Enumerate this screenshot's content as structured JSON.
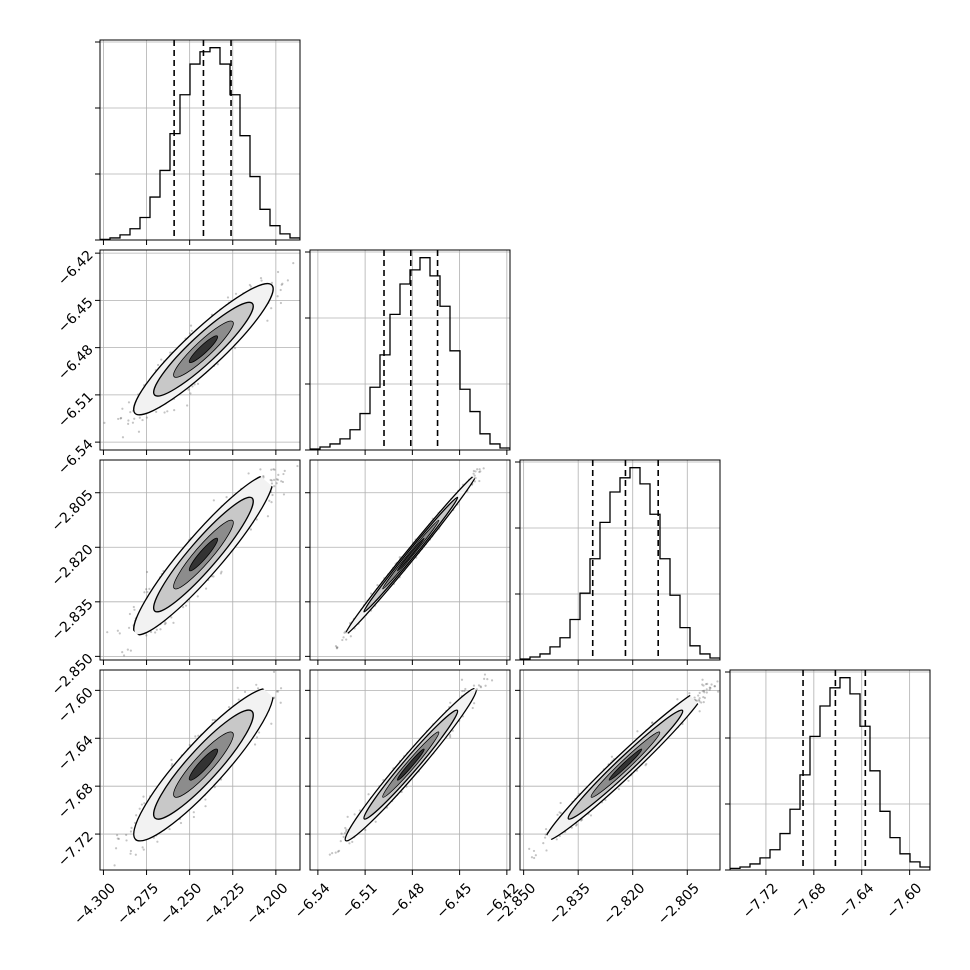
{
  "chart_data": {
    "type": "corner",
    "title": "",
    "grid": true,
    "parameters": [
      {
        "name": "",
        "range": [
          -4.302,
          -4.186
        ],
        "ticks": [
          -4.3,
          -4.275,
          -4.25,
          -4.225,
          -4.2
        ],
        "tick_labels": [
          "−4.300",
          "−4.275",
          "−4.250",
          "−4.225",
          "−4.200"
        ]
      },
      {
        "name": "",
        "range": [
          -6.545,
          -6.418
        ],
        "ticks": [
          -6.54,
          -6.51,
          -6.48,
          -6.45,
          -6.42
        ],
        "tick_labels": [
          "−6.54",
          "−6.51",
          "−6.48",
          "−6.45",
          "−6.42"
        ]
      },
      {
        "name": "",
        "range": [
          -2.851,
          -2.796
        ],
        "ticks": [
          -2.85,
          -2.835,
          -2.82,
          -2.805
        ],
        "tick_labels": [
          "−2.850",
          "−2.835",
          "−2.820",
          "−2.805"
        ]
      },
      {
        "name": "",
        "range": [
          -7.75,
          -7.583
        ],
        "ticks": [
          -7.72,
          -7.68,
          -7.64,
          -7.6
        ],
        "tick_labels": [
          "−7.72",
          "−7.68",
          "−7.64",
          "−7.60"
        ]
      }
    ],
    "quantiles": [
      [
        -4.259,
        -4.242,
        -4.226
      ],
      [
        -6.498,
        -6.481,
        -6.464
      ],
      [
        -2.831,
        -2.822,
        -2.813
      ],
      [
        -7.689,
        -7.662,
        -7.637
      ]
    ],
    "histograms": [
      [
        0.3,
        1.0,
        2.5,
        5.5,
        11.0,
        21.0,
        34.0,
        52.0,
        71.0,
        86.0,
        92.0,
        94.0,
        86.0,
        71.0,
        51.0,
        31.0,
        15.0,
        7.0,
        3.0,
        1.0
      ],
      [
        0.5,
        1.5,
        3.0,
        5.5,
        10.0,
        18.0,
        31.0,
        47.0,
        67.0,
        82.0,
        89.0,
        95.0,
        86.0,
        71.0,
        49.0,
        30.0,
        19.0,
        8.0,
        3.0,
        1.0
      ],
      [
        0.5,
        1.5,
        3.0,
        6.5,
        11.0,
        20.0,
        33.0,
        50.0,
        68.0,
        83.0,
        90.0,
        95.0,
        87.0,
        72.0,
        50.0,
        32.0,
        16.0,
        7.0,
        3.0,
        1.0
      ],
      [
        0.8,
        1.5,
        3.0,
        6.0,
        10.0,
        18.0,
        30.0,
        47.0,
        66.0,
        81.0,
        90.0,
        95.0,
        87.0,
        71.0,
        49.0,
        29.0,
        16.0,
        8.0,
        4.0,
        1.5
      ]
    ],
    "pair_correlations": [
      {
        "row": 1,
        "col": 0,
        "rho": 0.92
      },
      {
        "row": 2,
        "col": 0,
        "rho": 0.93
      },
      {
        "row": 2,
        "col": 1,
        "rho": 0.995
      },
      {
        "row": 3,
        "col": 0,
        "rho": 0.91
      },
      {
        "row": 3,
        "col": 1,
        "rho": 0.98
      },
      {
        "row": 3,
        "col": 2,
        "rho": 0.98
      }
    ],
    "colors": {
      "line": "#000000",
      "grid": "#b0b0b0",
      "samples": "#555555"
    }
  }
}
